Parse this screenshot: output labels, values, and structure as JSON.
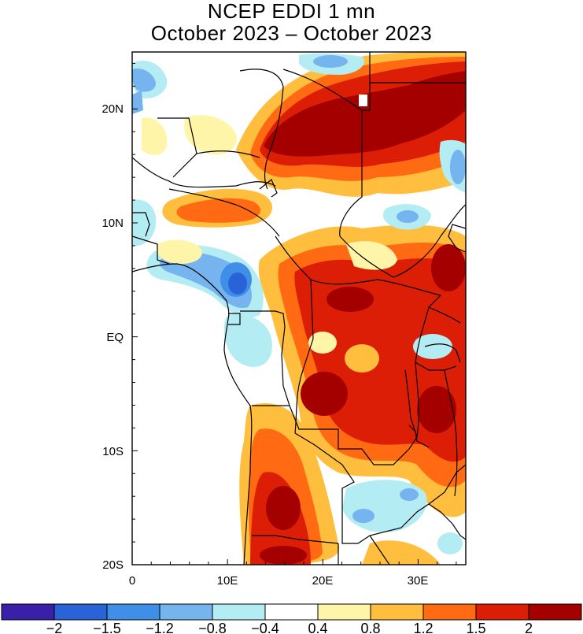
{
  "title": "NCEP EDDI 1 mn",
  "subtitle": "October 2023 – October 2023",
  "map": {
    "lon_ticks": [
      "0",
      "10E",
      "20E",
      "30E"
    ],
    "lat_ticks": [
      "20N",
      "10N",
      "EQ",
      "10S",
      "20S"
    ],
    "lon_range": [
      0,
      35
    ],
    "lat_range": [
      -20,
      25
    ]
  },
  "colorbar": {
    "colors": [
      "#3a1fa8",
      "#2a63d8",
      "#3f8fe8",
      "#76b4f0",
      "#b4ecf4",
      "#ffffff",
      "#fff5a8",
      "#ffbe3e",
      "#ff6a12",
      "#dc1e06",
      "#a50000"
    ],
    "labels": [
      "−2",
      "−1.5",
      "−1.2",
      "−0.8",
      "−0.4",
      "0.4",
      "0.8",
      "1.2",
      "1.5",
      "2"
    ]
  }
}
